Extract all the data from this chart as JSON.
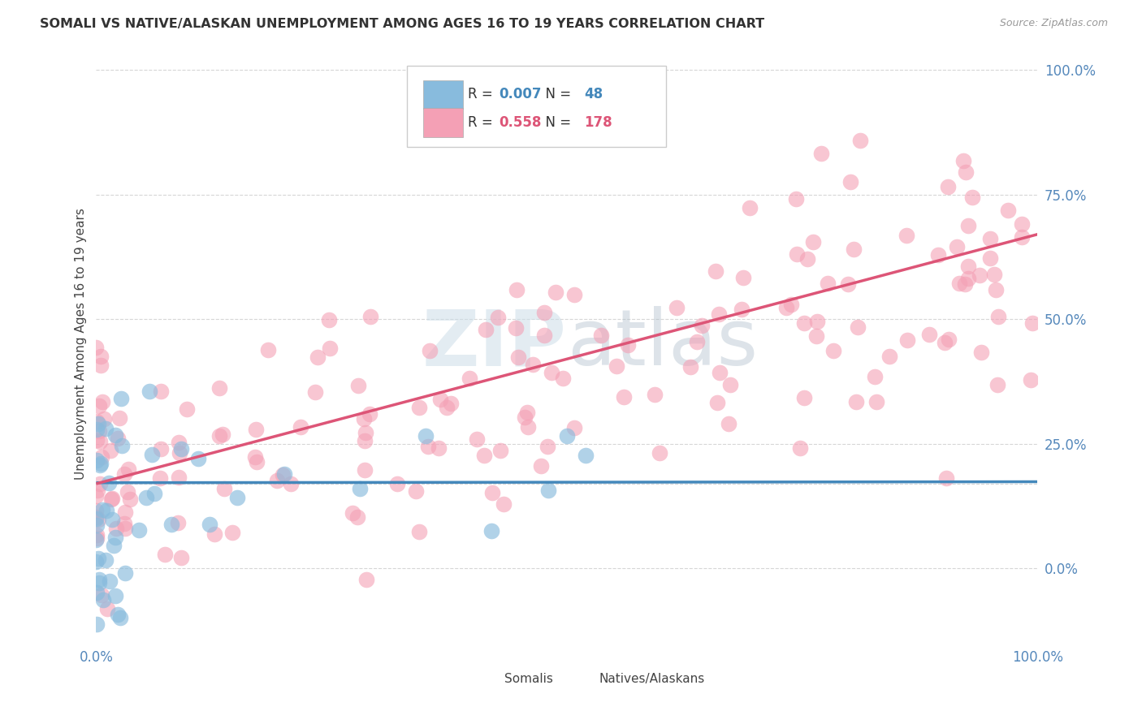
{
  "title": "SOMALI VS NATIVE/ALASKAN UNEMPLOYMENT AMONG AGES 16 TO 19 YEARS CORRELATION CHART",
  "source": "Source: ZipAtlas.com",
  "ylabel": "Unemployment Among Ages 16 to 19 years",
  "xlim": [
    0.0,
    1.0
  ],
  "ylim": [
    -0.15,
    1.05
  ],
  "ytick_values": [
    0.0,
    0.25,
    0.5,
    0.75,
    1.0
  ],
  "xtick_labels": [
    "0.0%",
    "100.0%"
  ],
  "xtick_values": [
    0.0,
    1.0
  ],
  "somali_color": "#88BBDD",
  "somali_line_color": "#4488BB",
  "native_color": "#F4A0B5",
  "native_line_color": "#DD5577",
  "somali_R": 0.007,
  "somali_N": 48,
  "native_R": 0.558,
  "native_N": 178,
  "legend_label_somali": "Somalis",
  "legend_label_native": "Natives/Alaskans",
  "background_color": "#FFFFFF",
  "grid_color": "#CCCCCC",
  "axis_label_color": "#5588BB",
  "dashed_line_y": 0.17,
  "watermark_color": "#CCDDE8"
}
